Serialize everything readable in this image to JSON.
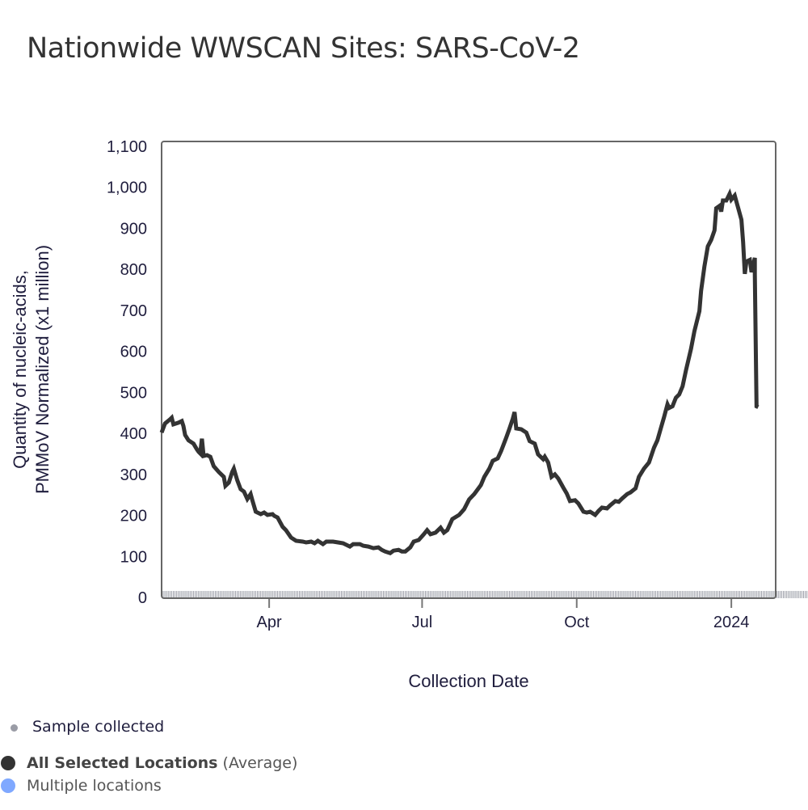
{
  "title": "Nationwide WWSCAN Sites: SARS-CoV-2",
  "legend": {
    "sample": {
      "label": "Sample collected",
      "color": "#9a9ca6"
    },
    "average": {
      "label_bold": "All Selected Locations",
      "label_rest": " (Average)",
      "color": "#333333"
    },
    "multiple": {
      "label": "Multiple locations",
      "color": "#7fa8ff"
    }
  },
  "chart_data": {
    "type": "line",
    "title": "Nationwide WWSCAN Sites: SARS-CoV-2",
    "xlabel": "Collection Date",
    "ylabel_lines": [
      "Quantity of nucleic-acids,",
      "PMMoV Normalized (x1 million)"
    ],
    "ylim": [
      0,
      1100
    ],
    "yticks": [
      0,
      100,
      200,
      300,
      400,
      500,
      600,
      700,
      800,
      900,
      1000,
      1100
    ],
    "ytick_labels": [
      "0",
      "100",
      "200",
      "300",
      "400",
      "500",
      "600",
      "700",
      "800",
      "900",
      "1,000",
      "1,100"
    ],
    "xlim": [
      "2023-01-27",
      "2024-02-21"
    ],
    "xticks": [
      "2023-04-01",
      "2023-07-01",
      "2023-10-01",
      "2024-01-01"
    ],
    "xtick_labels": [
      "Apr",
      "Jul",
      "Oct",
      "2024"
    ],
    "rug": {
      "name": "Sample collected",
      "start": "2023-01-27",
      "end": "2024-02-15"
    },
    "grid": false,
    "series": [
      {
        "name": "All Selected Locations (Average)",
        "color": "#333333",
        "points": [
          [
            "2023-01-27",
            402
          ],
          [
            "2023-01-29",
            424
          ],
          [
            "2023-02-01",
            434
          ],
          [
            "2023-02-02",
            438
          ],
          [
            "2023-02-03",
            422
          ],
          [
            "2023-02-06",
            426
          ],
          [
            "2023-02-08",
            430
          ],
          [
            "2023-02-09",
            418
          ],
          [
            "2023-02-10",
            396
          ],
          [
            "2023-02-12",
            383
          ],
          [
            "2023-02-15",
            375
          ],
          [
            "2023-02-17",
            361
          ],
          [
            "2023-02-18",
            355
          ],
          [
            "2023-02-19",
            351
          ],
          [
            "2023-02-20",
            387
          ],
          [
            "2023-02-21",
            345
          ],
          [
            "2023-02-23",
            347
          ],
          [
            "2023-02-25",
            343
          ],
          [
            "2023-02-27",
            320
          ],
          [
            "2023-03-02",
            306
          ],
          [
            "2023-03-05",
            294
          ],
          [
            "2023-03-06",
            272
          ],
          [
            "2023-03-08",
            280
          ],
          [
            "2023-03-10",
            306
          ],
          [
            "2023-03-11",
            314
          ],
          [
            "2023-03-13",
            286
          ],
          [
            "2023-03-15",
            264
          ],
          [
            "2023-03-17",
            258
          ],
          [
            "2023-03-19",
            240
          ],
          [
            "2023-03-21",
            252
          ],
          [
            "2023-03-22",
            237
          ],
          [
            "2023-03-24",
            209
          ],
          [
            "2023-03-27",
            203
          ],
          [
            "2023-03-29",
            207
          ],
          [
            "2023-03-31",
            201
          ],
          [
            "2023-04-03",
            203
          ],
          [
            "2023-04-04",
            199
          ],
          [
            "2023-04-06",
            195
          ],
          [
            "2023-04-09",
            172
          ],
          [
            "2023-04-11",
            164
          ],
          [
            "2023-04-14",
            146
          ],
          [
            "2023-04-17",
            138
          ],
          [
            "2023-04-21",
            136
          ],
          [
            "2023-04-23",
            134
          ],
          [
            "2023-04-26",
            136
          ],
          [
            "2023-04-28",
            132
          ],
          [
            "2023-04-30",
            138
          ],
          [
            "2023-05-03",
            130
          ],
          [
            "2023-05-05",
            136
          ],
          [
            "2023-05-09",
            136
          ],
          [
            "2023-05-12",
            134
          ],
          [
            "2023-05-15",
            132
          ],
          [
            "2023-05-19",
            124
          ],
          [
            "2023-05-21",
            130
          ],
          [
            "2023-05-25",
            130
          ],
          [
            "2023-05-27",
            126
          ],
          [
            "2023-05-30",
            124
          ],
          [
            "2023-06-02",
            120
          ],
          [
            "2023-06-05",
            122
          ],
          [
            "2023-06-07",
            116
          ],
          [
            "2023-06-09",
            112
          ],
          [
            "2023-06-12",
            108
          ],
          [
            "2023-06-14",
            114
          ],
          [
            "2023-06-17",
            116
          ],
          [
            "2023-06-19",
            112
          ],
          [
            "2023-06-21",
            112
          ],
          [
            "2023-06-24",
            122
          ],
          [
            "2023-06-26",
            136
          ],
          [
            "2023-06-29",
            140
          ],
          [
            "2023-07-02",
            154
          ],
          [
            "2023-07-04",
            164
          ],
          [
            "2023-07-06",
            154
          ],
          [
            "2023-07-09",
            158
          ],
          [
            "2023-07-12",
            170
          ],
          [
            "2023-07-14",
            158
          ],
          [
            "2023-07-16",
            164
          ],
          [
            "2023-07-19",
            191
          ],
          [
            "2023-07-23",
            201
          ],
          [
            "2023-07-26",
            215
          ],
          [
            "2023-07-29",
            239
          ],
          [
            "2023-08-01",
            252
          ],
          [
            "2023-08-05",
            274
          ],
          [
            "2023-08-07",
            294
          ],
          [
            "2023-08-10",
            314
          ],
          [
            "2023-08-12",
            333
          ],
          [
            "2023-08-15",
            339
          ],
          [
            "2023-08-17",
            357
          ],
          [
            "2023-08-20",
            389
          ],
          [
            "2023-08-22",
            412
          ],
          [
            "2023-08-24",
            436
          ],
          [
            "2023-08-25",
            452
          ],
          [
            "2023-08-26",
            412
          ],
          [
            "2023-08-29",
            410
          ],
          [
            "2023-09-01",
            402
          ],
          [
            "2023-09-03",
            381
          ],
          [
            "2023-09-06",
            375
          ],
          [
            "2023-09-08",
            349
          ],
          [
            "2023-09-11",
            337
          ],
          [
            "2023-09-12",
            343
          ],
          [
            "2023-09-14",
            329
          ],
          [
            "2023-09-16",
            294
          ],
          [
            "2023-09-18",
            300
          ],
          [
            "2023-09-20",
            290
          ],
          [
            "2023-09-23",
            268
          ],
          [
            "2023-09-25",
            254
          ],
          [
            "2023-09-27",
            235
          ],
          [
            "2023-09-30",
            237
          ],
          [
            "2023-10-02",
            229
          ],
          [
            "2023-10-05",
            209
          ],
          [
            "2023-10-07",
            207
          ],
          [
            "2023-10-09",
            209
          ],
          [
            "2023-10-12",
            201
          ],
          [
            "2023-10-14",
            211
          ],
          [
            "2023-10-16",
            219
          ],
          [
            "2023-10-19",
            217
          ],
          [
            "2023-10-21",
            225
          ],
          [
            "2023-10-24",
            235
          ],
          [
            "2023-10-26",
            233
          ],
          [
            "2023-10-28",
            241
          ],
          [
            "2023-10-31",
            252
          ],
          [
            "2023-11-02",
            256
          ],
          [
            "2023-11-05",
            266
          ],
          [
            "2023-11-07",
            294
          ],
          [
            "2023-11-10",
            314
          ],
          [
            "2023-11-13",
            329
          ],
          [
            "2023-11-16",
            365
          ],
          [
            "2023-11-18",
            383
          ],
          [
            "2023-11-20",
            412
          ],
          [
            "2023-11-22",
            440
          ],
          [
            "2023-11-24",
            471
          ],
          [
            "2023-11-25",
            462
          ],
          [
            "2023-11-27",
            466
          ],
          [
            "2023-11-29",
            487
          ],
          [
            "2023-12-01",
            495
          ],
          [
            "2023-12-03",
            515
          ],
          [
            "2023-12-05",
            554
          ],
          [
            "2023-12-08",
            606
          ],
          [
            "2023-12-10",
            649
          ],
          [
            "2023-12-13",
            698
          ],
          [
            "2023-12-14",
            748
          ],
          [
            "2023-12-16",
            807
          ],
          [
            "2023-12-18",
            856
          ],
          [
            "2023-12-20",
            872
          ],
          [
            "2023-12-22",
            895
          ],
          [
            "2023-12-23",
            949
          ],
          [
            "2023-12-25",
            955
          ],
          [
            "2023-12-26",
            941
          ],
          [
            "2023-12-27",
            968
          ],
          [
            "2023-12-29",
            968
          ],
          [
            "2023-12-30",
            976
          ],
          [
            "2023-12-31",
            984
          ],
          [
            "2024-01-01",
            970
          ],
          [
            "2024-01-03",
            980
          ],
          [
            "2024-01-05",
            951
          ],
          [
            "2024-01-07",
            921
          ],
          [
            "2024-01-08",
            866
          ],
          [
            "2024-01-09",
            789
          ],
          [
            "2024-01-10",
            819
          ],
          [
            "2024-01-12",
            823
          ],
          [
            "2024-01-13",
            793
          ],
          [
            "2024-01-15",
            828
          ],
          [
            "2024-01-15",
            787
          ],
          [
            "2024-01-16",
            466
          ],
          [
            "2024-01-17",
            464
          ]
        ]
      }
    ]
  }
}
